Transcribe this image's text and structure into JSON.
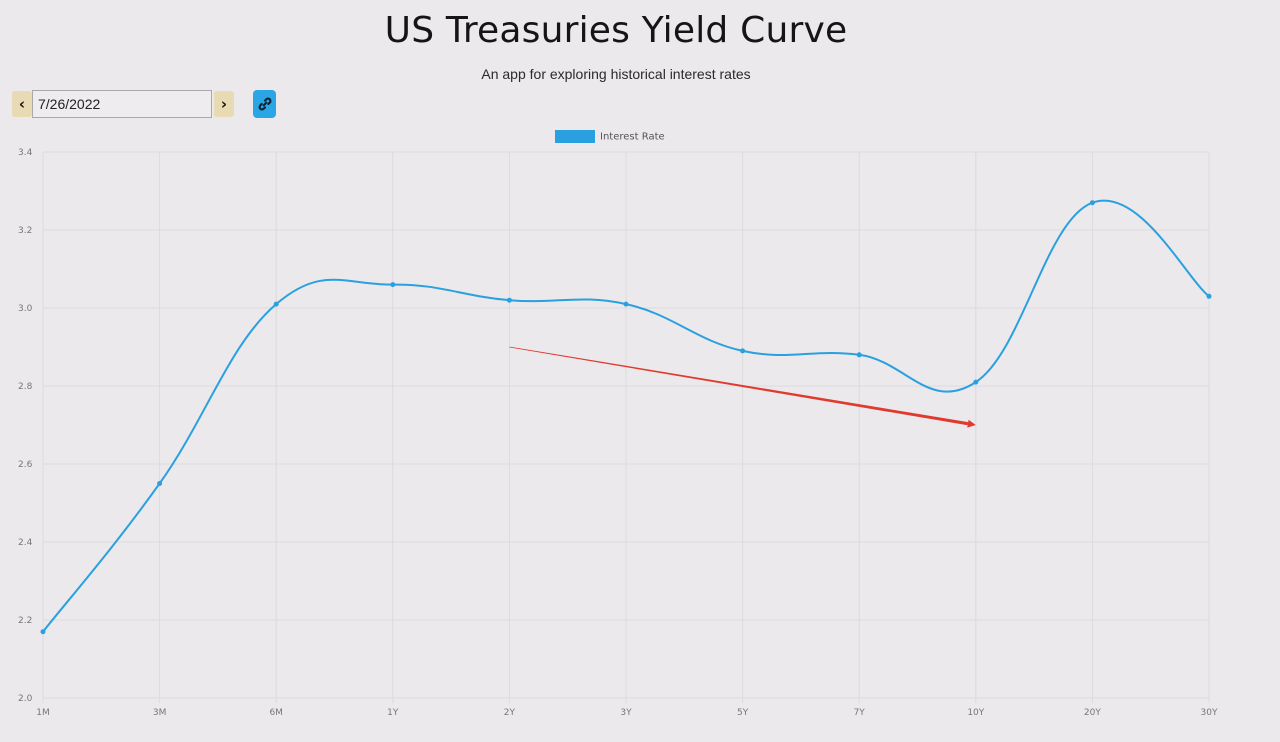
{
  "header": {
    "title": "US Treasuries Yield Curve",
    "subtitle": "An app for exploring historical interest rates"
  },
  "controls": {
    "prev_label": "‹",
    "date_value": "7/26/2022",
    "next_label": "›",
    "link_icon": "link-icon"
  },
  "colors": {
    "line": "#2aa0e0",
    "annotation": "#e03a2e",
    "grid": "#dcdadc"
  },
  "chart_data": {
    "type": "line",
    "legend": [
      "Interest Rate"
    ],
    "legend_position": "top",
    "categories": [
      "1M",
      "3M",
      "6M",
      "1Y",
      "2Y",
      "3Y",
      "5Y",
      "7Y",
      "10Y",
      "20Y",
      "30Y"
    ],
    "series": [
      {
        "name": "Interest Rate",
        "values": [
          2.17,
          2.55,
          3.01,
          3.06,
          3.02,
          3.01,
          2.89,
          2.88,
          2.81,
          3.27,
          3.03
        ]
      }
    ],
    "ylim": [
      2.0,
      3.4
    ],
    "yticks": [
      "2.0",
      "2.2",
      "2.4",
      "2.6",
      "2.8",
      "3.0",
      "3.2",
      "3.4"
    ],
    "grid": true,
    "annotation_arrow": {
      "from": {
        "x": "2Y",
        "y": 2.9
      },
      "to": {
        "x": "10Y",
        "y": 2.7
      }
    }
  }
}
